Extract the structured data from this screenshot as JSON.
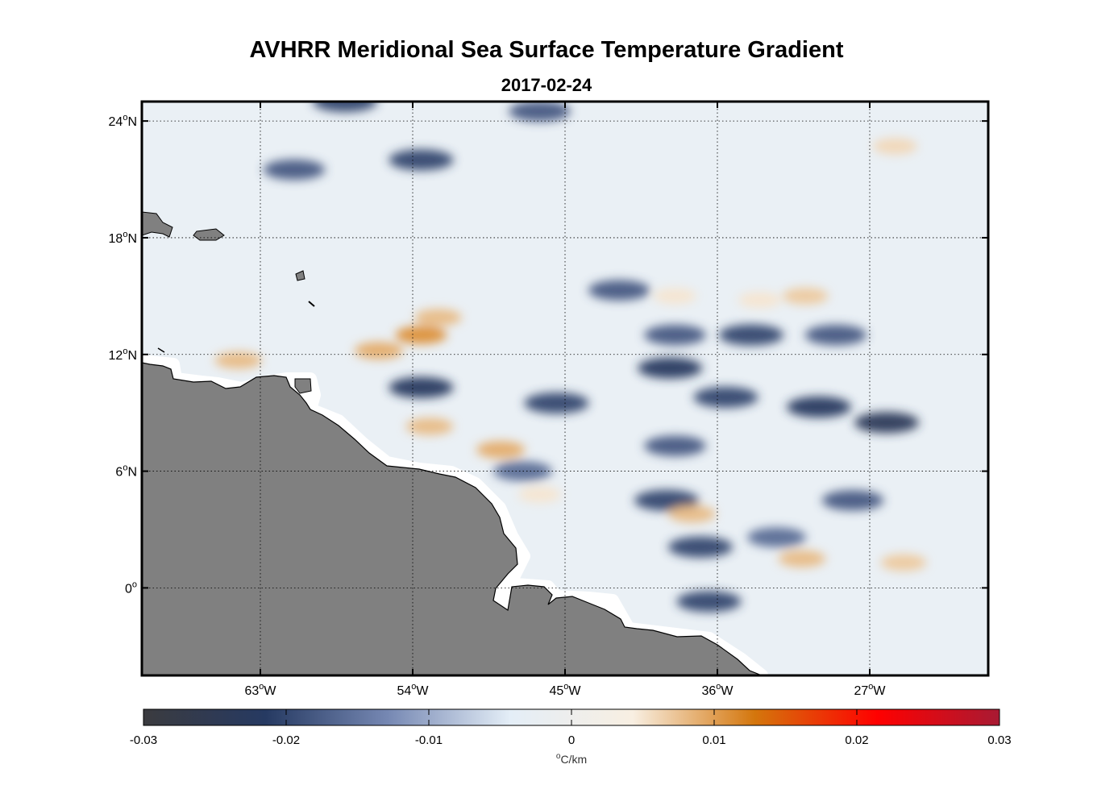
{
  "title": "AVHRR Meridional Sea Surface Temperature Gradient",
  "subtitle": "2017-02-24",
  "map": {
    "projection": "equirectangular",
    "lon_range": [
      -70,
      -20
    ],
    "lat_range": [
      -4.5,
      25
    ],
    "grid": "dotted",
    "land_color": "#808080",
    "lon_ticks": [
      {
        "value": -63,
        "label": "63",
        "sup": "o",
        "hemi": "W"
      },
      {
        "value": -54,
        "label": "54",
        "sup": "o",
        "hemi": "W"
      },
      {
        "value": -45,
        "label": "45",
        "sup": "o",
        "hemi": "W"
      },
      {
        "value": -36,
        "label": "36",
        "sup": "o",
        "hemi": "W"
      },
      {
        "value": -27,
        "label": "27",
        "sup": "o",
        "hemi": "W"
      }
    ],
    "lat_ticks": [
      {
        "value": 24,
        "label": "24",
        "sup": "o",
        "hemi": "N"
      },
      {
        "value": 18,
        "label": "18",
        "sup": "o",
        "hemi": "N"
      },
      {
        "value": 12,
        "label": "12",
        "sup": "o",
        "hemi": "N"
      },
      {
        "value": 6,
        "label": "6",
        "sup": "o",
        "hemi": "N"
      },
      {
        "value": 0,
        "label": "0",
        "sup": "o",
        "hemi": ""
      }
    ]
  },
  "colorbar": {
    "min": -0.03,
    "max": 0.03,
    "tick_labels": [
      "-0.03",
      "-0.02",
      "-0.01",
      "0",
      "0.01",
      "0.02",
      "0.03"
    ],
    "unit_sup": "o",
    "unit": "C/km",
    "colors": [
      "#3b3b3f",
      "#263a62",
      "#7688b3",
      "#e4eef7",
      "#f8efe2",
      "#d4760c",
      "#ff0000",
      "#a81a33"
    ]
  },
  "chart_data": {
    "type": "heatmap",
    "title": "AVHRR Meridional Sea Surface Temperature Gradient",
    "subtitle": "2017-02-24",
    "variable": "meridional SST gradient",
    "units": "°C/km",
    "color_range": [
      -0.03,
      0.03
    ],
    "x_axis": "longitude",
    "y_axis": "latitude",
    "xlim": [
      -70,
      -20
    ],
    "ylim": [
      -4.5,
      25
    ],
    "features": [
      {
        "lon": -53.5,
        "lat": 10.3,
        "value": -0.022
      },
      {
        "lon": -45.5,
        "lat": 9.5,
        "value": -0.02
      },
      {
        "lon": -38.8,
        "lat": 11.3,
        "value": -0.022
      },
      {
        "lon": -35.5,
        "lat": 9.8,
        "value": -0.02
      },
      {
        "lon": -30.0,
        "lat": 9.3,
        "value": -0.022
      },
      {
        "lon": -26.0,
        "lat": 8.5,
        "value": -0.024
      },
      {
        "lon": -29.0,
        "lat": 13.0,
        "value": -0.018
      },
      {
        "lon": -38.5,
        "lat": 7.3,
        "value": -0.018
      },
      {
        "lon": -39.0,
        "lat": 4.5,
        "value": -0.02
      },
      {
        "lon": -37.0,
        "lat": 2.1,
        "value": -0.02
      },
      {
        "lon": -36.5,
        "lat": -0.7,
        "value": -0.02
      },
      {
        "lon": -28.0,
        "lat": 4.5,
        "value": -0.018
      },
      {
        "lon": -32.5,
        "lat": 2.6,
        "value": -0.016
      },
      {
        "lon": -47.5,
        "lat": 6.0,
        "value": -0.016
      },
      {
        "lon": -53.5,
        "lat": 22.0,
        "value": -0.02
      },
      {
        "lon": -61.0,
        "lat": 21.5,
        "value": -0.018
      },
      {
        "lon": -58.0,
        "lat": 25.0,
        "value": -0.02
      },
      {
        "lon": -46.5,
        "lat": 24.5,
        "value": -0.018
      },
      {
        "lon": -41.8,
        "lat": 15.3,
        "value": -0.018
      },
      {
        "lon": -34.0,
        "lat": 13.0,
        "value": -0.02
      },
      {
        "lon": -38.5,
        "lat": 13.0,
        "value": -0.018
      },
      {
        "lon": -53.5,
        "lat": 13.0,
        "value": 0.011
      },
      {
        "lon": -56.0,
        "lat": 12.2,
        "value": 0.009
      },
      {
        "lon": -52.5,
        "lat": 13.9,
        "value": 0.008
      },
      {
        "lon": -53.0,
        "lat": 8.3,
        "value": 0.008
      },
      {
        "lon": -48.8,
        "lat": 7.1,
        "value": 0.009
      },
      {
        "lon": -37.5,
        "lat": 3.8,
        "value": 0.008
      },
      {
        "lon": -31.0,
        "lat": 1.5,
        "value": 0.008
      },
      {
        "lon": -25.0,
        "lat": 1.3,
        "value": 0.007
      },
      {
        "lon": -64.3,
        "lat": 11.7,
        "value": 0.008
      },
      {
        "lon": -30.8,
        "lat": 15.0,
        "value": 0.007
      },
      {
        "lon": -33.5,
        "lat": 14.8,
        "value": 0.005
      },
      {
        "lon": -25.5,
        "lat": 22.7,
        "value": 0.006
      },
      {
        "lon": -38.5,
        "lat": 15.0,
        "value": 0.005
      },
      {
        "lon": -46.5,
        "lat": 4.8,
        "value": 0.005
      }
    ]
  }
}
